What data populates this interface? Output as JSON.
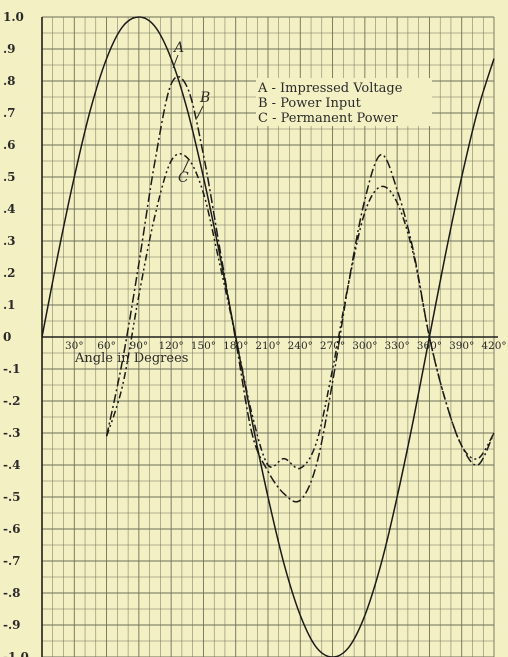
{
  "chart_data": {
    "type": "line",
    "xlabel": "Angle in Degrees",
    "ylabel": "",
    "xlim": [
      0,
      420
    ],
    "ylim": [
      -1.0,
      1.0
    ],
    "grid": true,
    "x_tick_labels": [
      "30°",
      "60°",
      "90°",
      "120°",
      "150°",
      "180°",
      "210°",
      "240°",
      "270°",
      "300°",
      "330°",
      "360°",
      "390°",
      "420°"
    ],
    "y_tick_labels": [
      "1.0",
      ".9",
      ".8",
      ".7",
      ".6",
      ".5",
      ".4",
      ".3",
      ".2",
      ".1",
      "0",
      "-.1",
      "-.2",
      "-.3",
      "-.4",
      "-.5",
      "-.6",
      "-.7",
      "-.8",
      "-.9",
      "-1.0"
    ],
    "legend": [
      "A - Impressed Voltage",
      "B - Power Input",
      "C - Permanent Power"
    ],
    "legend_position": "top-right",
    "series": [
      {
        "name": "A",
        "style": "solid",
        "x": [
          0,
          15,
          30,
          45,
          60,
          75,
          90,
          105,
          120,
          135,
          150,
          165,
          180,
          195,
          210,
          225,
          240,
          255,
          270,
          285,
          300,
          315,
          330,
          345,
          360,
          375,
          390,
          405,
          420
        ],
        "y": [
          0,
          0.26,
          0.5,
          0.71,
          0.87,
          0.97,
          1.0,
          0.97,
          0.87,
          0.71,
          0.5,
          0.26,
          0,
          -0.26,
          -0.5,
          -0.71,
          -0.87,
          -0.97,
          -1.0,
          -0.97,
          -0.87,
          -0.71,
          -0.5,
          -0.26,
          0,
          0.26,
          0.5,
          0.71,
          0.87
        ]
      },
      {
        "name": "B",
        "style": "dash-dot",
        "x": [
          60,
          75,
          90,
          105,
          120,
          135,
          150,
          165,
          180,
          195,
          210,
          225,
          240,
          255,
          270,
          285,
          300,
          315,
          330,
          345,
          360,
          375,
          390,
          405,
          420
        ],
        "y": [
          -0.31,
          -0.07,
          0.23,
          0.55,
          0.79,
          0.78,
          0.57,
          0.28,
          -0.01,
          -0.3,
          -0.42,
          -0.49,
          -0.51,
          -0.4,
          -0.14,
          0.17,
          0.43,
          0.57,
          0.46,
          0.27,
          0.0,
          -0.2,
          -0.34,
          -0.4,
          -0.3
        ]
      },
      {
        "name": "C",
        "style": "dash-dot-dot",
        "x": [
          60,
          75,
          90,
          105,
          120,
          135,
          150,
          165,
          180,
          195,
          210,
          225,
          240,
          255,
          270,
          285,
          300,
          315,
          330,
          345,
          360,
          375,
          390,
          405,
          420
        ],
        "y": [
          -0.31,
          -0.15,
          0.13,
          0.38,
          0.55,
          0.56,
          0.45,
          0.23,
          0.0,
          -0.24,
          -0.4,
          -0.38,
          -0.41,
          -0.33,
          -0.1,
          0.17,
          0.39,
          0.47,
          0.42,
          0.26,
          0.0,
          -0.2,
          -0.34,
          -0.38,
          -0.3
        ]
      }
    ],
    "annotations": [
      "A",
      "B",
      "C"
    ]
  }
}
